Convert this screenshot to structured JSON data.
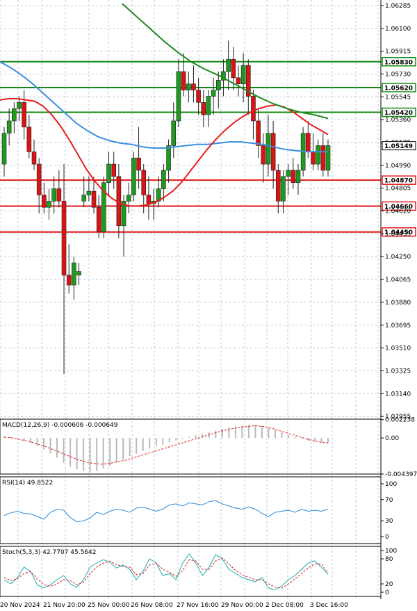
{
  "chart_data": {
    "type": "candlestick",
    "price_axis": {
      "ticks": [
        "1.06285",
        "1.06100",
        "1.05915",
        "1.05730",
        "1.05545",
        "1.05360",
        "1.05175",
        "1.04990",
        "1.04805",
        "1.04620",
        "1.04435",
        "1.04250",
        "1.04065",
        "1.03880",
        "1.03695",
        "1.03510",
        "1.03325",
        "1.03140",
        "1.02955"
      ],
      "range": [
        1.0295,
        1.0633
      ]
    },
    "current_price": "1.05149",
    "levels": [
      {
        "label": "1.05830",
        "value": 1.0583,
        "color": "#128a12",
        "kind": "resistance"
      },
      {
        "label": "1.05620",
        "value": 1.0562,
        "color": "#128a12",
        "kind": "resistance"
      },
      {
        "label": "1.05420",
        "value": 1.0542,
        "color": "#128a12",
        "kind": "resistance"
      },
      {
        "label": "1.04870",
        "value": 1.0487,
        "color": "#e01818",
        "kind": "support"
      },
      {
        "label": "1.04660",
        "value": 1.0466,
        "color": "#e01818",
        "kind": "support"
      },
      {
        "label": "1.04450",
        "value": 1.0445,
        "color": "#e01818",
        "kind": "support"
      }
    ],
    "time_labels": [
      "20 Nov 2024",
      "21 Nov 20:00",
      "25 Nov 00:00",
      "26 Nov 08:00",
      "27 Nov 16:00",
      "29 Nov 00:00",
      "2 Dec 08:00",
      "3 Dec 16:00"
    ],
    "candles": [
      [
        1.05,
        1.053,
        1.049,
        1.0525
      ],
      [
        1.0525,
        1.0545,
        1.0515,
        1.0535
      ],
      [
        1.0535,
        1.055,
        1.0525,
        1.0545
      ],
      [
        1.0545,
        1.0555,
        1.0535,
        1.055
      ],
      [
        1.055,
        1.056,
        1.052,
        1.053
      ],
      [
        1.053,
        1.054,
        1.0505,
        1.051
      ],
      [
        1.051,
        1.052,
        1.0495,
        1.05
      ],
      [
        1.05,
        1.0505,
        1.046,
        1.0475
      ],
      [
        1.0475,
        1.0485,
        1.046,
        1.0465
      ],
      [
        1.0465,
        1.048,
        1.0455,
        1.047
      ],
      [
        1.047,
        1.049,
        1.046,
        1.048
      ],
      [
        1.048,
        1.0495,
        1.0465,
        1.047
      ],
      [
        1.047,
        1.05,
        1.033,
        1.041
      ],
      [
        1.041,
        1.0435,
        1.0395,
        1.0402
      ],
      [
        1.0402,
        1.0425,
        1.039,
        1.042
      ],
      [
        1.041,
        1.042,
        1.0402,
        1.0413
      ],
      [
        1.047,
        1.049,
        1.0465,
        1.0475
      ],
      [
        1.0475,
        1.049,
        1.047,
        1.0478
      ],
      [
        1.0478,
        1.049,
        1.046,
        1.0465
      ],
      [
        1.0465,
        1.0475,
        1.044,
        1.0445
      ],
      [
        1.0445,
        1.049,
        1.044,
        1.0485
      ],
      [
        1.0485,
        1.051,
        1.0475,
        1.05
      ],
      [
        1.05,
        1.051,
        1.048,
        1.049
      ],
      [
        1.049,
        1.05,
        1.044,
        1.045
      ],
      [
        1.045,
        1.0475,
        1.0425,
        1.047
      ],
      [
        1.047,
        1.0485,
        1.046,
        1.0475
      ],
      [
        1.0475,
        1.051,
        1.047,
        1.0505
      ],
      [
        1.0505,
        1.053,
        1.048,
        1.0495
      ],
      [
        1.0495,
        1.05,
        1.046,
        1.0475
      ],
      [
        1.0475,
        1.049,
        1.0455,
        1.0468
      ],
      [
        1.0468,
        1.048,
        1.0455,
        1.047
      ],
      [
        1.047,
        1.049,
        1.0465,
        1.048
      ],
      [
        1.048,
        1.05,
        1.047,
        1.0495
      ],
      [
        1.0495,
        1.052,
        1.0485,
        1.0515
      ],
      [
        1.0515,
        1.055,
        1.0505,
        1.0535
      ],
      [
        1.0535,
        1.0585,
        1.053,
        1.0575
      ],
      [
        1.0575,
        1.059,
        1.0555,
        1.056
      ],
      [
        1.056,
        1.0575,
        1.055,
        1.0565
      ],
      [
        1.0565,
        1.058,
        1.055,
        1.056
      ],
      [
        1.056,
        1.057,
        1.054,
        1.055
      ],
      [
        1.055,
        1.056,
        1.053,
        1.054
      ],
      [
        1.054,
        1.056,
        1.053,
        1.0555
      ],
      [
        1.0555,
        1.057,
        1.054,
        1.056
      ],
      [
        1.056,
        1.0575,
        1.0545,
        1.0568
      ],
      [
        1.0568,
        1.0585,
        1.0555,
        1.0575
      ],
      [
        1.0575,
        1.06,
        1.056,
        1.0585
      ],
      [
        1.0585,
        1.0595,
        1.056,
        1.057
      ],
      [
        1.057,
        1.058,
        1.0555,
        1.0565
      ],
      [
        1.0565,
        1.059,
        1.055,
        1.058
      ],
      [
        1.058,
        1.0585,
        1.054,
        1.0555
      ],
      [
        1.0555,
        1.056,
        1.052,
        1.0535
      ],
      [
        1.0535,
        1.0545,
        1.0505,
        1.0515
      ],
      [
        1.0515,
        1.0525,
        1.0485,
        1.05
      ],
      [
        1.05,
        1.054,
        1.049,
        1.0525
      ],
      [
        1.0525,
        1.0535,
        1.048,
        1.0495
      ],
      [
        1.0495,
        1.05,
        1.046,
        1.047
      ],
      [
        1.047,
        1.0495,
        1.046,
        1.049
      ],
      [
        1.049,
        1.05,
        1.0475,
        1.0495
      ],
      [
        1.0495,
        1.0505,
        1.048,
        1.0485
      ],
      [
        1.0485,
        1.05,
        1.0475,
        1.0495
      ],
      [
        1.0495,
        1.053,
        1.049,
        1.0525
      ],
      [
        1.0525,
        1.0535,
        1.0505,
        1.051
      ],
      [
        1.051,
        1.0525,
        1.0495,
        1.05
      ],
      [
        1.05,
        1.052,
        1.0495,
        1.0515
      ],
      [
        1.0515,
        1.0525,
        1.049,
        1.0495
      ],
      [
        1.0495,
        1.052,
        1.049,
        1.0515
      ]
    ],
    "ma_red": [
      1.0552,
      1.0553,
      1.0553,
      1.0552,
      1.0551,
      1.0547,
      1.054,
      1.0531,
      1.052,
      1.0508,
      1.0496,
      1.0486,
      1.0478,
      1.0472,
      1.0468,
      1.0466,
      1.0466,
      1.0467,
      1.0469,
      1.0473,
      1.0478,
      1.0485,
      1.0494,
      1.0503,
      1.0512,
      1.052,
      1.0527,
      1.0533,
      1.0538,
      1.0542,
      1.0545,
      1.0547,
      1.0548,
      1.0546,
      1.0542,
      1.0537,
      1.0532,
      1.0528,
      1.0524
    ],
    "ma_blue": [
      1.0583,
      1.0578,
      1.0572,
      1.0565,
      1.0557,
      1.0549,
      1.0541,
      1.0533,
      1.0527,
      1.0522,
      1.0519,
      1.0517,
      1.0516,
      1.0514,
      1.0513,
      1.0513,
      1.0514,
      1.0515,
      1.0516,
      1.0516,
      1.0517,
      1.0518,
      1.0518,
      1.0517,
      1.0516,
      1.0514,
      1.0512,
      1.0511,
      1.051,
      1.051,
      1.051
    ],
    "ma_green": [
      1.063,
      1.062,
      1.061,
      1.06,
      1.0591,
      1.0583,
      1.0577,
      1.0572,
      1.0566,
      1.056,
      1.0554,
      1.0549,
      1.0545,
      1.0542,
      1.054,
      1.0537
    ],
    "macd": {
      "label": "MACD(12,26,9) -0.000606 -0.000649",
      "top_tick": "0.002238",
      "zero_tick": "0.00",
      "bottom_tick": "-0.004397",
      "range": [
        -0.0044,
        0.0023
      ],
      "hist": [
        0.0002,
        0.0001,
        -0.0001,
        -0.0003,
        -0.0006,
        -0.001,
        -0.0014,
        -0.0019,
        -0.0024,
        -0.003,
        -0.0035,
        -0.0038,
        -0.004,
        -0.0041,
        -0.004,
        -0.0037,
        -0.0034,
        -0.003,
        -0.0026,
        -0.0022,
        -0.0019,
        -0.0016,
        -0.0013,
        -0.001,
        -0.0008,
        -0.0005,
        -0.0003,
        -0.0001,
        0.0001,
        0.0003,
        0.0005,
        0.0007,
        0.0009,
        0.0011,
        0.0013,
        0.0014,
        0.0015,
        0.0016,
        0.0016,
        0.0015,
        0.0013,
        0.001,
        0.0007,
        0.0004,
        0.0001,
        -0.0001,
        -0.0003,
        -0.0004,
        -0.0005,
        -0.0006
      ],
      "signal": [
        0.0001,
        0.0,
        -0.0002,
        -0.0004,
        -0.0007,
        -0.001,
        -0.0014,
        -0.0018,
        -0.0022,
        -0.0026,
        -0.0029,
        -0.0031,
        -0.0032,
        -0.0031,
        -0.0029,
        -0.0027,
        -0.0024,
        -0.0021,
        -0.0018,
        -0.0015,
        -0.0012,
        -0.0009,
        -0.0006,
        -0.0003,
        0.0,
        0.0003,
        0.0006,
        0.0009,
        0.0011,
        0.0013,
        0.0014,
        0.0015,
        0.0014,
        0.0012,
        0.0009,
        0.0006,
        0.0003,
        0.0,
        -0.0003,
        -0.0005,
        -0.0006
      ]
    },
    "rsi": {
      "label": "RSI(14) 49.8522",
      "ticks": [
        "100",
        "70",
        "30",
        "0"
      ],
      "values": [
        40,
        45,
        48,
        44,
        43,
        38,
        33,
        46,
        52,
        50,
        36,
        28,
        30,
        35,
        46,
        42,
        48,
        52,
        50,
        46,
        54,
        56,
        52,
        48,
        52,
        60,
        62,
        58,
        64,
        62,
        60,
        66,
        68,
        62,
        58,
        54,
        52,
        56,
        52,
        44,
        38,
        46,
        48,
        50,
        46,
        52,
        48,
        50,
        48,
        52
      ]
    },
    "stoch": {
      "label": "Stoch(5,3,3) 42.7707 45.5642",
      "ticks": [
        "100",
        "80",
        "20",
        "0"
      ],
      "k": [
        30,
        20,
        35,
        60,
        50,
        18,
        10,
        18,
        30,
        40,
        20,
        12,
        30,
        60,
        70,
        78,
        72,
        58,
        65,
        55,
        30,
        50,
        80,
        70,
        40,
        45,
        30,
        70,
        92,
        70,
        40,
        60,
        90,
        80,
        55,
        45,
        35,
        30,
        25,
        35,
        10,
        6,
        15,
        30,
        40,
        55,
        70,
        75,
        60,
        43
      ],
      "d": [
        35,
        28,
        32,
        45,
        50,
        32,
        18,
        14,
        20,
        30,
        28,
        18,
        24,
        45,
        60,
        70,
        74,
        66,
        62,
        60,
        42,
        45,
        65,
        70,
        55,
        48,
        38,
        52,
        78,
        75,
        55,
        55,
        75,
        82,
        68,
        52,
        42,
        35,
        30,
        30,
        20,
        12,
        10,
        20,
        32,
        45,
        58,
        68,
        68,
        46
      ]
    }
  }
}
